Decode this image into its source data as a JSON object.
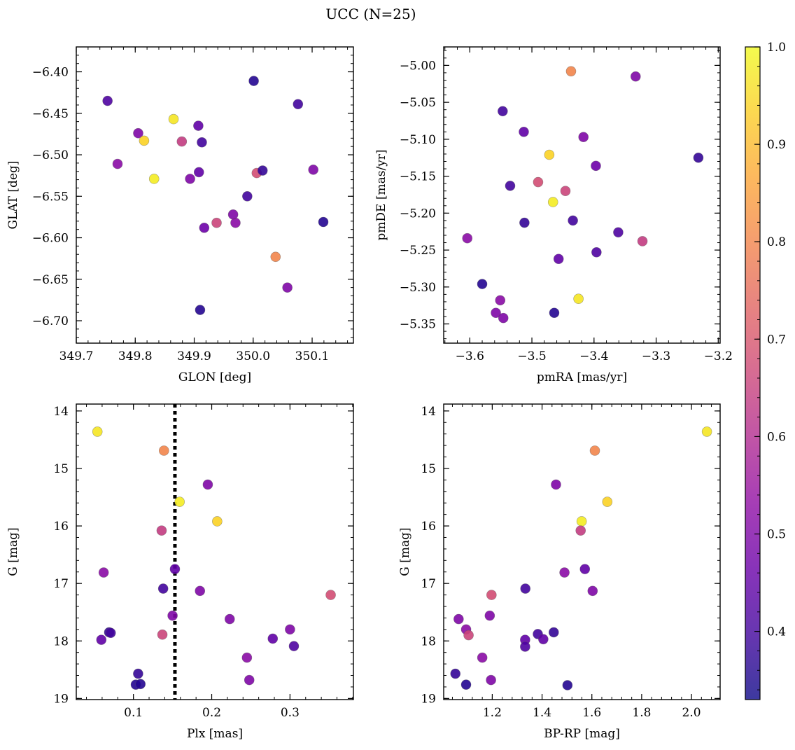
{
  "figure_title": "UCC (N=25)",
  "colorbar": {
    "min": 0.33,
    "max": 1.0,
    "ticks": [
      0.4,
      0.5,
      0.6,
      0.7,
      0.8,
      0.9,
      1.0
    ],
    "tick_labels": [
      "0.4",
      "0.5",
      "0.6",
      "0.7",
      "0.8",
      "0.9",
      "1.0"
    ],
    "colormap": "plasma"
  },
  "chart_data": [
    {
      "type": "scatter",
      "xlabel": "GLON [deg]",
      "ylabel": "GLAT [deg]",
      "xlim": [
        349.7,
        350.17
      ],
      "ylim": [
        -6.727,
        -6.37
      ],
      "y_inverted": false,
      "xticks": [
        349.7,
        349.8,
        349.9,
        350.0,
        350.1
      ],
      "xtick_labels": [
        "349.7",
        "349.8",
        "349.9",
        "350.0",
        "350.1"
      ],
      "yticks": [
        -6.7,
        -6.65,
        -6.6,
        -6.55,
        -6.5,
        -6.45,
        -6.4
      ],
      "ytick_labels": [
        "−6.70",
        "−6.65",
        "−6.60",
        "−6.55",
        "−6.50",
        "−6.45",
        "−6.40"
      ],
      "points": [
        {
          "x": 349.753,
          "y": -6.435,
          "c": 0.42
        },
        {
          "x": 349.77,
          "y": -6.511,
          "c": 0.52
        },
        {
          "x": 349.805,
          "y": -6.474,
          "c": 0.5
        },
        {
          "x": 349.815,
          "y": -6.483,
          "c": 0.94
        },
        {
          "x": 349.832,
          "y": -6.529,
          "c": 0.98
        },
        {
          "x": 349.865,
          "y": -6.457,
          "c": 0.97
        },
        {
          "x": 349.879,
          "y": -6.484,
          "c": 0.64
        },
        {
          "x": 349.893,
          "y": -6.529,
          "c": 0.5
        },
        {
          "x": 349.907,
          "y": -6.465,
          "c": 0.45
        },
        {
          "x": 349.908,
          "y": -6.521,
          "c": 0.45
        },
        {
          "x": 349.913,
          "y": -6.485,
          "c": 0.4
        },
        {
          "x": 349.917,
          "y": -6.588,
          "c": 0.47
        },
        {
          "x": 349.91,
          "y": -6.687,
          "c": 0.36
        },
        {
          "x": 349.938,
          "y": -6.582,
          "c": 0.66
        },
        {
          "x": 349.966,
          "y": -6.572,
          "c": 0.5
        },
        {
          "x": 349.97,
          "y": -6.582,
          "c": 0.52
        },
        {
          "x": 349.99,
          "y": -6.55,
          "c": 0.4
        },
        {
          "x": 350.001,
          "y": -6.411,
          "c": 0.36
        },
        {
          "x": 350.006,
          "y": -6.522,
          "c": 0.68
        },
        {
          "x": 350.016,
          "y": -6.519,
          "c": 0.38
        },
        {
          "x": 350.038,
          "y": -6.623,
          "c": 0.8
        },
        {
          "x": 350.058,
          "y": -6.66,
          "c": 0.5
        },
        {
          "x": 350.076,
          "y": -6.439,
          "c": 0.4
        },
        {
          "x": 350.102,
          "y": -6.518,
          "c": 0.5
        },
        {
          "x": 350.119,
          "y": -6.581,
          "c": 0.36
        }
      ]
    },
    {
      "type": "scatter",
      "xlabel": "pmRA [mas/yr]",
      "ylabel": "pmDE [mas/yr]",
      "xlim": [
        -3.642,
        -3.197
      ],
      "ylim": [
        -5.376,
        -4.975
      ],
      "y_inverted": false,
      "xticks": [
        -3.6,
        -3.5,
        -3.4,
        -3.3,
        -3.2
      ],
      "xtick_labels": [
        "−3.6",
        "−3.5",
        "−3.4",
        "−3.3",
        "−3.2"
      ],
      "yticks": [
        -5.35,
        -5.3,
        -5.25,
        -5.2,
        -5.15,
        -5.1,
        -5.05,
        -5.0
      ],
      "ytick_labels": [
        "−5.35",
        "−5.30",
        "−5.25",
        "−5.20",
        "−5.15",
        "−5.10",
        "−5.05",
        "−5.00"
      ],
      "points": [
        {
          "x": -3.437,
          "y": -5.008,
          "c": 0.8
        },
        {
          "x": -3.333,
          "y": -5.015,
          "c": 0.5
        },
        {
          "x": -3.547,
          "y": -5.062,
          "c": 0.4
        },
        {
          "x": -3.513,
          "y": -5.09,
          "c": 0.45
        },
        {
          "x": -3.417,
          "y": -5.097,
          "c": 0.5
        },
        {
          "x": -3.472,
          "y": -5.121,
          "c": 0.94
        },
        {
          "x": -3.232,
          "y": -5.125,
          "c": 0.38
        },
        {
          "x": -3.397,
          "y": -5.136,
          "c": 0.47
        },
        {
          "x": -3.535,
          "y": -5.163,
          "c": 0.4
        },
        {
          "x": -3.49,
          "y": -5.158,
          "c": 0.68
        },
        {
          "x": -3.446,
          "y": -5.17,
          "c": 0.66
        },
        {
          "x": -3.466,
          "y": -5.185,
          "c": 0.98
        },
        {
          "x": -3.512,
          "y": -5.213,
          "c": 0.38
        },
        {
          "x": -3.434,
          "y": -5.21,
          "c": 0.4
        },
        {
          "x": -3.361,
          "y": -5.226,
          "c": 0.42
        },
        {
          "x": -3.604,
          "y": -5.234,
          "c": 0.52
        },
        {
          "x": -3.322,
          "y": -5.238,
          "c": 0.64
        },
        {
          "x": -3.396,
          "y": -5.253,
          "c": 0.42
        },
        {
          "x": -3.457,
          "y": -5.262,
          "c": 0.45
        },
        {
          "x": -3.58,
          "y": -5.296,
          "c": 0.36
        },
        {
          "x": -3.425,
          "y": -5.316,
          "c": 0.97
        },
        {
          "x": -3.551,
          "y": -5.318,
          "c": 0.52
        },
        {
          "x": -3.558,
          "y": -5.335,
          "c": 0.5
        },
        {
          "x": -3.464,
          "y": -5.335,
          "c": 0.36
        },
        {
          "x": -3.546,
          "y": -5.342,
          "c": 0.5
        }
      ]
    },
    {
      "type": "scatter",
      "xlabel": "Plx [mas]",
      "ylabel": "G [mag]",
      "xlim": [
        0.027,
        0.381
      ],
      "ylim": [
        19.02,
        13.88
      ],
      "y_inverted": true,
      "xticks": [
        0.1,
        0.2,
        0.3
      ],
      "xtick_labels": [
        "0.1",
        "0.2",
        "0.3"
      ],
      "yticks": [
        14,
        15,
        16,
        17,
        18,
        19
      ],
      "ytick_labels": [
        "14",
        "15",
        "16",
        "17",
        "18",
        "19"
      ],
      "vline": {
        "x": 0.153,
        "style": "dotted"
      },
      "points": [
        {
          "x": 0.054,
          "y": 14.36,
          "c": 0.97
        },
        {
          "x": 0.139,
          "y": 14.69,
          "c": 0.8
        },
        {
          "x": 0.195,
          "y": 15.28,
          "c": 0.5
        },
        {
          "x": 0.159,
          "y": 15.58,
          "c": 0.98
        },
        {
          "x": 0.207,
          "y": 15.92,
          "c": 0.94
        },
        {
          "x": 0.136,
          "y": 16.08,
          "c": 0.64
        },
        {
          "x": 0.153,
          "y": 16.75,
          "c": 0.45
        },
        {
          "x": 0.062,
          "y": 16.81,
          "c": 0.52
        },
        {
          "x": 0.138,
          "y": 17.09,
          "c": 0.4
        },
        {
          "x": 0.185,
          "y": 17.13,
          "c": 0.5
        },
        {
          "x": 0.352,
          "y": 17.2,
          "c": 0.68
        },
        {
          "x": 0.15,
          "y": 17.56,
          "c": 0.5
        },
        {
          "x": 0.223,
          "y": 17.62,
          "c": 0.5
        },
        {
          "x": 0.3,
          "y": 17.8,
          "c": 0.5
        },
        {
          "x": 0.069,
          "y": 17.85,
          "c": 0.38
        },
        {
          "x": 0.071,
          "y": 17.86,
          "c": 0.4
        },
        {
          "x": 0.137,
          "y": 17.89,
          "c": 0.66
        },
        {
          "x": 0.278,
          "y": 17.96,
          "c": 0.45
        },
        {
          "x": 0.059,
          "y": 17.98,
          "c": 0.45
        },
        {
          "x": 0.305,
          "y": 18.09,
          "c": 0.42
        },
        {
          "x": 0.245,
          "y": 18.29,
          "c": 0.52
        },
        {
          "x": 0.106,
          "y": 18.57,
          "c": 0.38
        },
        {
          "x": 0.248,
          "y": 18.68,
          "c": 0.5
        },
        {
          "x": 0.103,
          "y": 18.76,
          "c": 0.36
        },
        {
          "x": 0.109,
          "y": 18.75,
          "c": 0.36
        }
      ]
    },
    {
      "type": "scatter",
      "xlabel": "BP-RP [mag]",
      "ylabel": "G [mag]",
      "xlim": [
        1.005,
        2.115
      ],
      "ylim": [
        19.02,
        13.88
      ],
      "y_inverted": true,
      "xticks": [
        1.2,
        1.4,
        1.6,
        1.8,
        2.0
      ],
      "xtick_labels": [
        "1.2",
        "1.4",
        "1.6",
        "1.8",
        "2.0"
      ],
      "yticks": [
        14,
        15,
        16,
        17,
        18,
        19
      ],
      "ytick_labels": [
        "14",
        "15",
        "16",
        "17",
        "18",
        "19"
      ],
      "points": [
        {
          "x": 2.062,
          "y": 14.36,
          "c": 0.97
        },
        {
          "x": 1.612,
          "y": 14.69,
          "c": 0.8
        },
        {
          "x": 1.456,
          "y": 15.28,
          "c": 0.5
        },
        {
          "x": 1.662,
          "y": 15.58,
          "c": 0.94
        },
        {
          "x": 1.559,
          "y": 15.92,
          "c": 0.98
        },
        {
          "x": 1.555,
          "y": 16.08,
          "c": 0.64
        },
        {
          "x": 1.572,
          "y": 16.75,
          "c": 0.45
        },
        {
          "x": 1.49,
          "y": 16.81,
          "c": 0.52
        },
        {
          "x": 1.333,
          "y": 17.09,
          "c": 0.4
        },
        {
          "x": 1.603,
          "y": 17.13,
          "c": 0.5
        },
        {
          "x": 1.197,
          "y": 17.2,
          "c": 0.68
        },
        {
          "x": 1.19,
          "y": 17.56,
          "c": 0.5
        },
        {
          "x": 1.065,
          "y": 17.62,
          "c": 0.5
        },
        {
          "x": 1.095,
          "y": 17.8,
          "c": 0.52
        },
        {
          "x": 1.447,
          "y": 17.85,
          "c": 0.38
        },
        {
          "x": 1.383,
          "y": 17.88,
          "c": 0.4
        },
        {
          "x": 1.105,
          "y": 17.9,
          "c": 0.66
        },
        {
          "x": 1.332,
          "y": 17.98,
          "c": 0.45
        },
        {
          "x": 1.405,
          "y": 17.97,
          "c": 0.45
        },
        {
          "x": 1.332,
          "y": 18.1,
          "c": 0.42
        },
        {
          "x": 1.16,
          "y": 18.29,
          "c": 0.52
        },
        {
          "x": 1.052,
          "y": 18.57,
          "c": 0.38
        },
        {
          "x": 1.195,
          "y": 18.68,
          "c": 0.5
        },
        {
          "x": 1.095,
          "y": 18.76,
          "c": 0.36
        },
        {
          "x": 1.502,
          "y": 18.77,
          "c": 0.36
        }
      ]
    }
  ]
}
